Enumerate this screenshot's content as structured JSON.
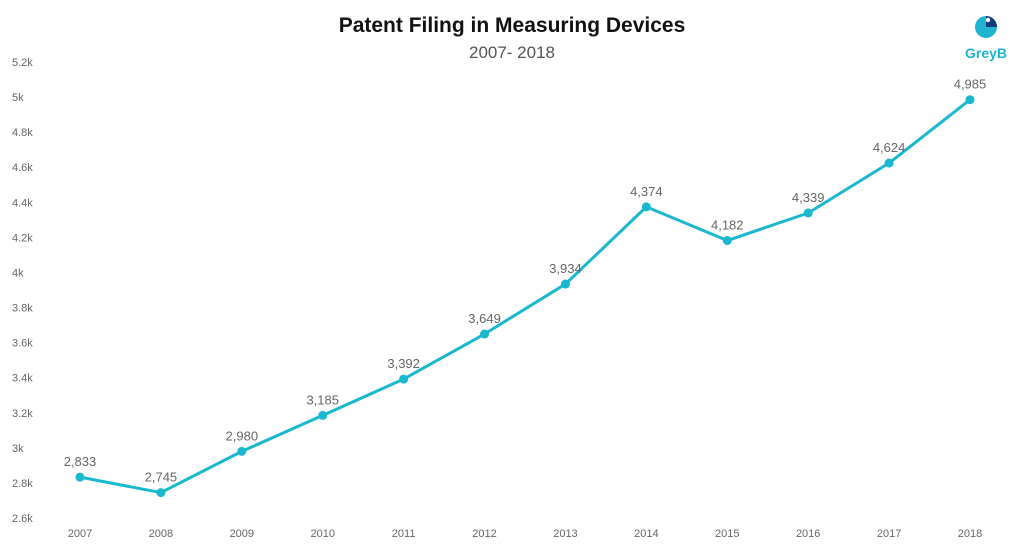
{
  "header": {
    "title": "Patent Filing in Measuring Devices",
    "subtitle": "2007- 2018"
  },
  "logo": {
    "text": "GreyB",
    "icon": "greyb-logo-icon"
  },
  "colors": {
    "line": "#1ab8cf",
    "point": "#1ab8cf",
    "text": "#666666"
  },
  "chart_data": {
    "type": "line",
    "title": "Patent Filing in Measuring Devices",
    "subtitle": "2007- 2018",
    "categories": [
      "2007",
      "2008",
      "2009",
      "2010",
      "2011",
      "2012",
      "2013",
      "2014",
      "2015",
      "2016",
      "2017",
      "2018"
    ],
    "series": [
      {
        "values": [
          2833,
          2745,
          2980,
          3185,
          3392,
          3649,
          3934,
          4374,
          4182,
          4339,
          4624,
          4985
        ]
      }
    ],
    "data_labels": [
      "2,833",
      "2,745",
      "2,980",
      "3,185",
      "3,392",
      "3,649",
      "3,934",
      "4,374",
      "4,182",
      "4,339",
      "4,624",
      "4,985"
    ],
    "ylim": [
      2600,
      5200
    ],
    "yticks": [
      2600,
      2800,
      3000,
      3200,
      3400,
      3600,
      3800,
      4000,
      4200,
      4400,
      4600,
      4800,
      5000,
      5200
    ],
    "ytick_labels": [
      "2.6k",
      "2.8k",
      "3k",
      "3.2k",
      "3.4k",
      "3.6k",
      "3.8k",
      "4k",
      "4.2k",
      "4.4k",
      "4.6k",
      "4.8k",
      "5k",
      "5.2k"
    ],
    "grid": false,
    "legend": "none"
  }
}
